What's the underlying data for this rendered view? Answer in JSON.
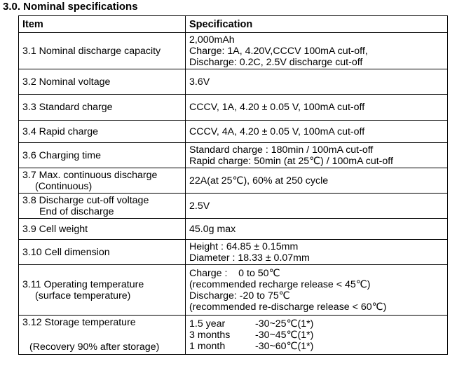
{
  "section_title": "3.0. Nominal specifications",
  "header": {
    "item": "Item",
    "specification": "Specification"
  },
  "rows": [
    {
      "item": [
        "3.1 Nominal discharge capacity"
      ],
      "spec": [
        "2,000mAh",
        "Charge: 1A, 4.20V,CCCV 100mA cut-off,",
        "Discharge: 0.2C, 2.5V discharge cut-off"
      ]
    },
    {
      "item": [
        "3.2 Nominal voltage"
      ],
      "spec": [
        "3.6V"
      ]
    },
    {
      "item": [
        "3.3 Standard charge"
      ],
      "spec": [
        "CCCV, 1A, 4.20 ± 0.05 V, 100mA cut-off"
      ]
    },
    {
      "item": [
        "3.4 Rapid charge"
      ],
      "spec": [
        "CCCV, 4A, 4.20 ± 0.05 V, 100mA cut-off"
      ]
    },
    {
      "item": [
        "3.6 Charging time"
      ],
      "spec": [
        "Standard charge : 180min / 100mA cut-off",
        "Rapid charge: 50min (at 25℃) / 100mA cut-off"
      ]
    },
    {
      "item": [
        "3.7 Max. continuous discharge",
        "(Continuous)"
      ],
      "spec": [
        "22A(at 25℃), 60% at 250 cycle"
      ]
    },
    {
      "item": [
        "3.8 Discharge cut-off voltage",
        "End of discharge"
      ],
      "spec": [
        "2.5V"
      ]
    },
    {
      "item": [
        "3.9 Cell weight"
      ],
      "spec": [
        "45.0g max"
      ]
    },
    {
      "item": [
        "3.10 Cell dimension"
      ],
      "spec": [
        "Height : 64.85 ± 0.15mm",
        "Diameter : 18.33 ± 0.07mm"
      ]
    },
    {
      "item": [
        "3.11 Operating temperature",
        "(surface temperature)"
      ],
      "spec": [
        "Charge :    0 to 50℃",
        "(recommended recharge release < 45℃)",
        "Discharge: -20 to 75℃",
        "(recommended re-discharge release < 60℃)"
      ]
    },
    {
      "item": [
        "3.12 Storage temperature",
        "(Recovery 90% after storage)"
      ],
      "spec": [
        {
          "duration": "1.5 year",
          "range": "-30~25℃(1*)"
        },
        {
          "duration": "3 months",
          "range": "-30~45℃(1*)"
        },
        {
          "duration": "1 month",
          "range": "-30~60℃(1*)"
        }
      ]
    }
  ]
}
